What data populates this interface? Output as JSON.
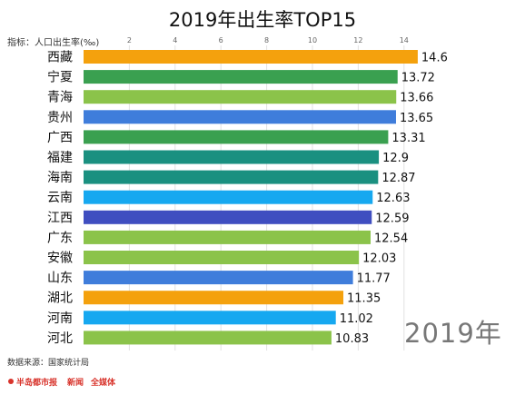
{
  "chart_data": {
    "type": "bar",
    "orientation": "horizontal",
    "title": "2019年出生率TOP15",
    "ylabel": "指标：人口出生率(‰)",
    "categories": [
      "西藏",
      "宁夏",
      "青海",
      "贵州",
      "广西",
      "福建",
      "海南",
      "云南",
      "江西",
      "广东",
      "安徽",
      "山东",
      "湖北",
      "河南",
      "河北"
    ],
    "values": [
      14.6,
      13.72,
      13.66,
      13.65,
      13.31,
      12.9,
      12.87,
      12.63,
      12.59,
      12.54,
      12.03,
      11.77,
      11.35,
      11.02,
      10.83
    ],
    "xticks": [
      "2",
      "4",
      "6",
      "8",
      "10",
      "12",
      "14"
    ],
    "xlim": [
      0,
      15
    ],
    "colors": [
      "#f4a10d",
      "#3aa050",
      "#8bc34a",
      "#3f7ddb",
      "#3aa050",
      "#1a9080",
      "#1a9080",
      "#16a8f0",
      "#3f4ec0",
      "#8bc34a",
      "#8bc34a",
      "#3f7ddb",
      "#f4a10d",
      "#16a8f0",
      "#8bc34a"
    ],
    "grid": true,
    "legend": "none"
  },
  "watermark_year": "2019年",
  "source": "数据来源：国家统计局",
  "logos": [
    "半岛都市报",
    "新闻",
    "全媒体"
  ]
}
